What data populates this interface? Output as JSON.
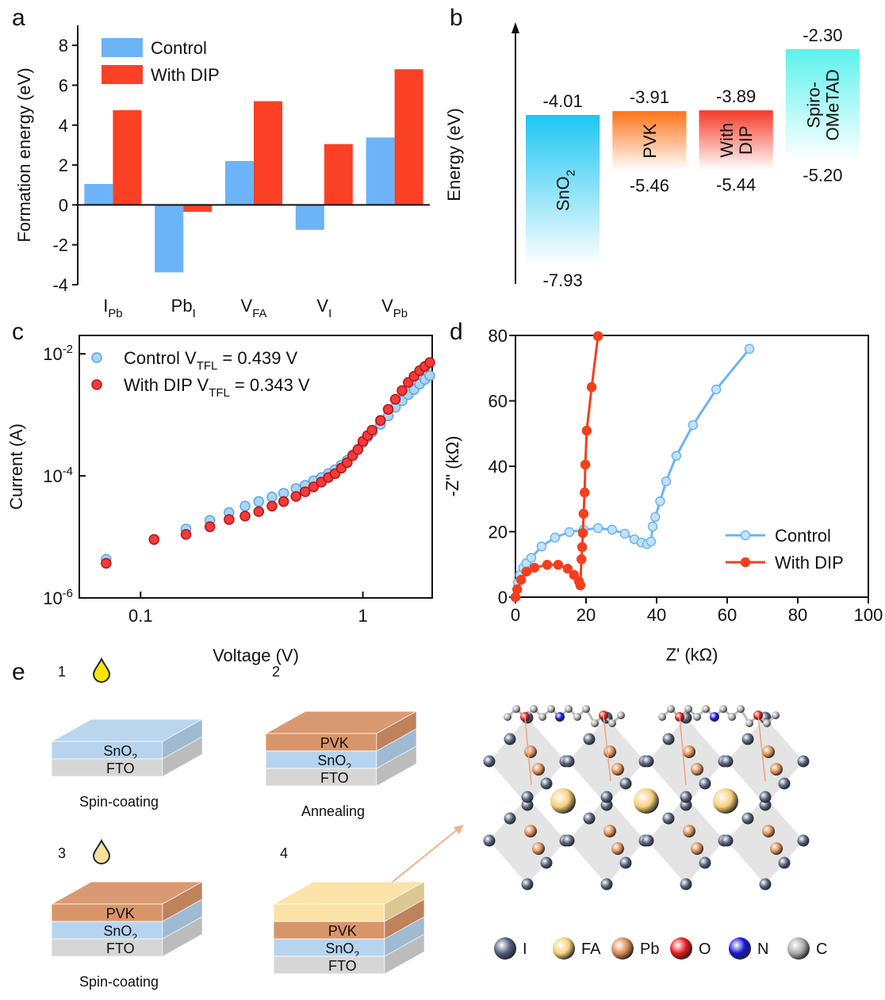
{
  "chart_data": [
    {
      "type": "bar",
      "panel": "a",
      "ylabel": "Formation energy (eV)",
      "categories": [
        [
          "I",
          "Pb"
        ],
        [
          "Pb",
          "I"
        ],
        [
          "V",
          "FA"
        ],
        [
          "V",
          "I"
        ],
        [
          "V",
          "Pb"
        ]
      ],
      "series": [
        {
          "name": "Control",
          "color": "#6cb4f7",
          "values": [
            1.05,
            -3.38,
            2.2,
            -1.25,
            3.38
          ]
        },
        {
          "name": "With DIP",
          "color": "#fb4125",
          "values": [
            4.75,
            -0.35,
            5.2,
            3.05,
            6.8
          ]
        }
      ],
      "ylim": [
        -4,
        9
      ],
      "yticks": [
        -4,
        -2,
        0,
        2,
        4,
        6,
        8
      ],
      "legend": "upper left"
    },
    {
      "type": "energy-level",
      "panel": "b",
      "ylabel": "Energy (eV)",
      "categories": [
        [
          [
            "SnO",
            "2"
          ]
        ],
        [
          [
            "PVK"
          ]
        ],
        [
          [
            "With"
          ],
          [
            "DIP"
          ]
        ],
        [
          [
            "Spiro-"
          ],
          [
            "OMeTAD"
          ]
        ]
      ],
      "upper": [
        -4.01,
        -3.91,
        -3.89,
        -2.3
      ],
      "upper_labels": [
        "-4.01",
        "-3.91",
        "-3.89",
        "-2.30"
      ],
      "lower": [
        -7.93,
        -5.46,
        -5.44,
        -5.2
      ],
      "lower_labels": [
        "-7.93",
        "-5.46",
        "-5.44",
        "-5.20"
      ],
      "colors": [
        "#1cc6f2",
        "#ff7418",
        "#f53a28",
        "#5cf2ee"
      ],
      "ylim": [
        -8.4,
        -1.6
      ]
    },
    {
      "type": "scatter",
      "panel": "c",
      "xlabel": "Voltage (V)",
      "ylabel": "Current (A)",
      "xscale": "log",
      "yscale": "log",
      "xlim": [
        0.053,
        2.05
      ],
      "ylim": [
        1e-06,
        0.02
      ],
      "xticks": [
        0.1,
        1
      ],
      "yticks": [
        {
          "value": 1e-06,
          "label": [
            "10",
            "-6"
          ]
        },
        {
          "value": 0.0001,
          "label": [
            "10",
            "-4"
          ]
        },
        {
          "value": 0.01,
          "label": [
            "10",
            "-2"
          ]
        }
      ],
      "series": [
        {
          "name": [
            "Control V",
            "TFL",
            " = 0.439 V"
          ],
          "color": "#a9d5f7",
          "edge": "#5aa6e0",
          "x": [
            0.07,
            0.115,
            0.16,
            0.205,
            0.25,
            0.295,
            0.34,
            0.39,
            0.44,
            0.5,
            0.55,
            0.6,
            0.65,
            0.7,
            0.75,
            0.8,
            0.85,
            0.9,
            0.95,
            1.0,
            1.05,
            1.1,
            1.2,
            1.3,
            1.4,
            1.5,
            1.6,
            1.7,
            1.8,
            1.9,
            2.0
          ],
          "values": [
            4.3e-06,
            9.1e-06,
            1.35e-05,
            1.87e-05,
            2.5e-05,
            3.2e-05,
            3.8e-05,
            4.5e-05,
            5.2e-05,
            6.2e-05,
            7e-05,
            8.3e-05,
            9.4e-05,
            0.000109,
            0.000126,
            0.00015,
            0.00018,
            0.00022,
            0.00027,
            0.00035,
            0.00043,
            0.00052,
            0.0007,
            0.00096,
            0.00133,
            0.0017,
            0.00215,
            0.0026,
            0.0032,
            0.0038,
            0.0044
          ]
        },
        {
          "name": [
            "With DIP V",
            "TFL",
            " = 0.343 V"
          ],
          "color": "#f23b3b",
          "edge": "#b81414",
          "x": [
            0.07,
            0.115,
            0.16,
            0.205,
            0.25,
            0.295,
            0.34,
            0.39,
            0.44,
            0.5,
            0.55,
            0.6,
            0.65,
            0.7,
            0.75,
            0.8,
            0.85,
            0.9,
            0.95,
            1.0,
            1.05,
            1.1,
            1.2,
            1.3,
            1.4,
            1.5,
            1.6,
            1.7,
            1.8,
            1.9,
            2.0
          ],
          "values": [
            3.7e-06,
            9.1e-06,
            1.1e-05,
            1.47e-05,
            1.93e-05,
            2.2e-05,
            2.6e-05,
            3.2e-05,
            3.8e-05,
            4.6e-05,
            5.5e-05,
            6.6e-05,
            7.9e-05,
            9.4e-05,
            0.000109,
            0.000134,
            0.000165,
            0.000215,
            0.00027,
            0.00037,
            0.00046,
            0.00056,
            0.00081,
            0.00123,
            0.0018,
            0.0025,
            0.0034,
            0.0043,
            0.0053,
            0.0062,
            0.0072
          ]
        }
      ],
      "legend": "upper left"
    },
    {
      "type": "line",
      "panel": "d",
      "xlabel": "Z' (kΩ)",
      "ylabel": "-Z\" (kΩ)",
      "xlim": [
        0,
        100
      ],
      "ylim": [
        0,
        80
      ],
      "xticks": [
        0,
        20,
        40,
        60,
        80,
        100
      ],
      "yticks": [
        0,
        20,
        40,
        60,
        80
      ],
      "series": [
        {
          "name": "Control",
          "color": "#6cb4f0",
          "marker": "#c4e2fa",
          "x": [
            0,
            0.7,
            1.3,
            2.2,
            3.1,
            4.5,
            7.4,
            11.2,
            15.3,
            19.3,
            23.4,
            27.4,
            31,
            33.7,
            35.7,
            37.3,
            38.4,
            38.9,
            39.6,
            41,
            42.7,
            45.6,
            50.3,
            56.9,
            66.3
          ],
          "values": [
            0,
            4.4,
            6.8,
            9,
            10.4,
            12,
            15.5,
            18.2,
            19.9,
            20.6,
            21.1,
            20.6,
            19.4,
            17.7,
            16.7,
            16.2,
            17,
            21.6,
            24.5,
            29.3,
            35.4,
            43.2,
            52.6,
            63.5,
            75.9
          ]
        },
        {
          "name": "With DIP",
          "color": "#f2401e",
          "marker": "#f2401e",
          "x": [
            0,
            0.5,
            1.6,
            3.1,
            5.4,
            9,
            12.1,
            14.8,
            16.6,
            18,
            18.4,
            18.7,
            18.9,
            19.1,
            19.3,
            19.6,
            19.8,
            20.2,
            21.6,
            23.4
          ],
          "values": [
            0,
            2.4,
            5.3,
            7.8,
            9,
            9.9,
            9.9,
            8.7,
            6.8,
            4.8,
            3.6,
            11.6,
            15.3,
            19.6,
            25.5,
            32,
            40.5,
            50.9,
            64.2,
            79.8
          ]
        }
      ],
      "legend": "lower right"
    }
  ],
  "diagram": {
    "panel": "e",
    "steps": [
      {
        "number": "1",
        "drop_color": "#f7e400",
        "caption": "Spin-coating",
        "layers": [
          {
            "label": [
              "SnO",
              "2"
            ],
            "color": "#b7d4ef"
          },
          {
            "label": [
              "FTO"
            ],
            "color": "#d6d6d6"
          }
        ]
      },
      {
        "number": "2",
        "caption": "Annealing",
        "layers": [
          {
            "label": [
              "PVK"
            ],
            "color": "#d9956a"
          },
          {
            "label": [
              "SnO",
              "2"
            ],
            "color": "#b7d4ef"
          },
          {
            "label": [
              "FTO"
            ],
            "color": "#d6d6d6"
          }
        ]
      },
      {
        "number": "3",
        "drop_color": "#fde09a",
        "caption": "Spin-coating",
        "layers": [
          {
            "label": [
              "PVK"
            ],
            "color": "#d9956a"
          },
          {
            "label": [
              "SnO",
              "2"
            ],
            "color": "#b7d4ef"
          },
          {
            "label": [
              "FTO"
            ],
            "color": "#d6d6d6"
          }
        ]
      },
      {
        "number": "4",
        "layers": [
          {
            "label": null,
            "color": "#fbe2a6"
          },
          {
            "label": [
              "PVK"
            ],
            "color": "#d9956a"
          },
          {
            "label": [
              "SnO",
              "2"
            ],
            "color": "#b7d4ef"
          },
          {
            "label": [
              "FTO"
            ],
            "color": "#d6d6d6"
          }
        ]
      }
    ],
    "atoms": [
      {
        "label": "I",
        "color": "#4f5d78"
      },
      {
        "label": "FA",
        "color": "#f7cf7a"
      },
      {
        "label": "Pb",
        "color": "#d98a52"
      },
      {
        "label": "O",
        "color": "#e41a1a"
      },
      {
        "label": "N",
        "color": "#1414d4"
      },
      {
        "label": "C",
        "color": "#ababab"
      }
    ]
  }
}
